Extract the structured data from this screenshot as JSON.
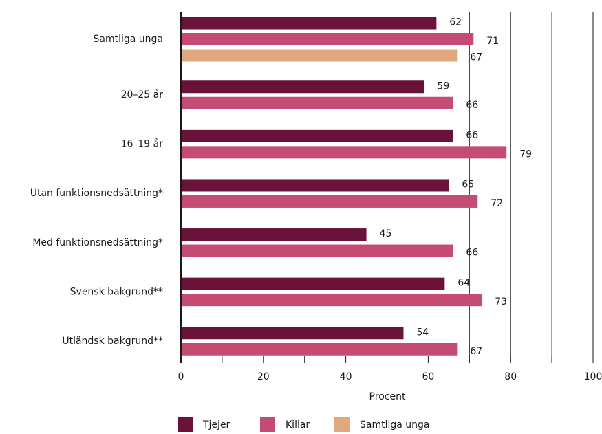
{
  "chart_data": {
    "type": "bar",
    "orientation": "horizontal",
    "categories": [
      "Samtliga unga",
      "20–25 år",
      "16–19 år",
      "Utan funktionsnedsättning*",
      "Med funktionsnedsättning*",
      "Svensk bakgrund**",
      "Utländsk bakgrund**"
    ],
    "series": [
      {
        "name": "Tjejer",
        "color": "#6b1238",
        "values": [
          62,
          59,
          66,
          65,
          45,
          64,
          54
        ]
      },
      {
        "name": "Killar",
        "color": "#c64b72",
        "values": [
          71,
          66,
          79,
          72,
          66,
          73,
          67
        ]
      },
      {
        "name": "Samtliga unga",
        "color": "#e0a87c",
        "values": [
          67,
          null,
          null,
          null,
          null,
          null,
          null
        ]
      }
    ],
    "xlabel": "Procent",
    "xlim": [
      0,
      100
    ],
    "xticks": [
      0,
      20,
      40,
      60,
      80,
      100
    ],
    "minor_ticks": [
      10,
      30,
      50,
      70,
      90
    ],
    "grid_lines": [
      70,
      80,
      90,
      100
    ],
    "legend": "bottom"
  }
}
